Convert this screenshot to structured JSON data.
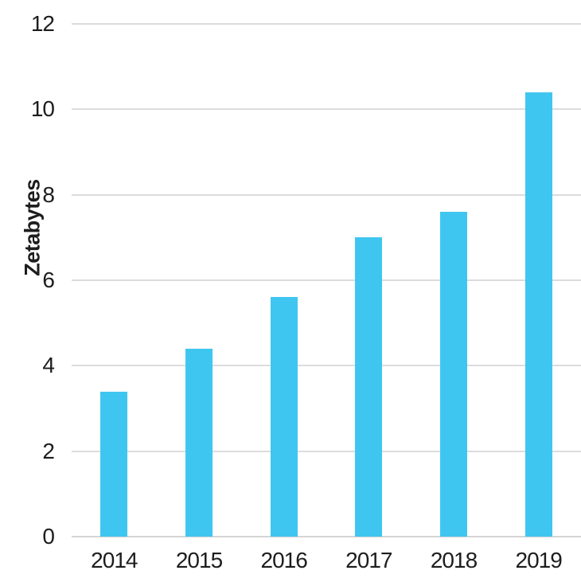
{
  "chart_data": {
    "type": "bar",
    "title": "",
    "categories": [
      "2014",
      "2015",
      "2016",
      "2017",
      "2018",
      "2019"
    ],
    "values": [
      3.4,
      4.4,
      5.6,
      7.0,
      7.6,
      10.4
    ],
    "xlabel": "",
    "ylabel": "Zetabytes",
    "ylim": [
      0,
      12
    ],
    "yticks": [
      0,
      2,
      4,
      6,
      8,
      10,
      12
    ],
    "grid": "horizontal",
    "legend": "none",
    "bar_color": "#3FC6F0",
    "gridline_color": "#DCDCDC",
    "axis_line_color": "#D5D5D5",
    "text_color": "#1D1D1D"
  }
}
